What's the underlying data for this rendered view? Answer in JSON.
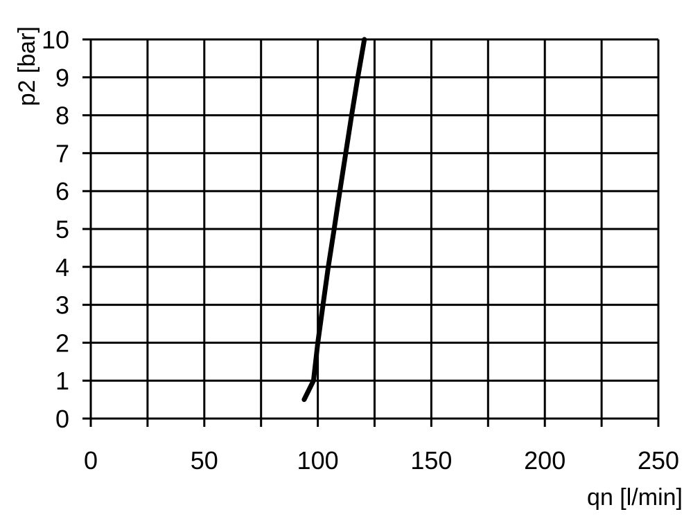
{
  "chart_data": {
    "type": "line",
    "title": "",
    "xlabel": "qn [l/min]",
    "ylabel": "p2 [bar]",
    "xlim": [
      0,
      250
    ],
    "ylim": [
      0,
      10
    ],
    "xticks": [
      0,
      50,
      100,
      150,
      200,
      250
    ],
    "yticks": [
      0,
      1,
      2,
      3,
      4,
      5,
      6,
      7,
      8,
      9,
      10
    ],
    "x_grid_step": 25,
    "y_grid_step": 1,
    "grid": true,
    "line_color": "#000000",
    "series": [
      {
        "x": [
          94,
          98.1,
          100,
          102.3,
          104.6,
          107.2,
          109.7,
          112.3,
          114.9,
          117.6,
          120.5
        ],
        "y": [
          0.5,
          1,
          2,
          3,
          4,
          5,
          6,
          7,
          8,
          9,
          10
        ]
      }
    ]
  }
}
